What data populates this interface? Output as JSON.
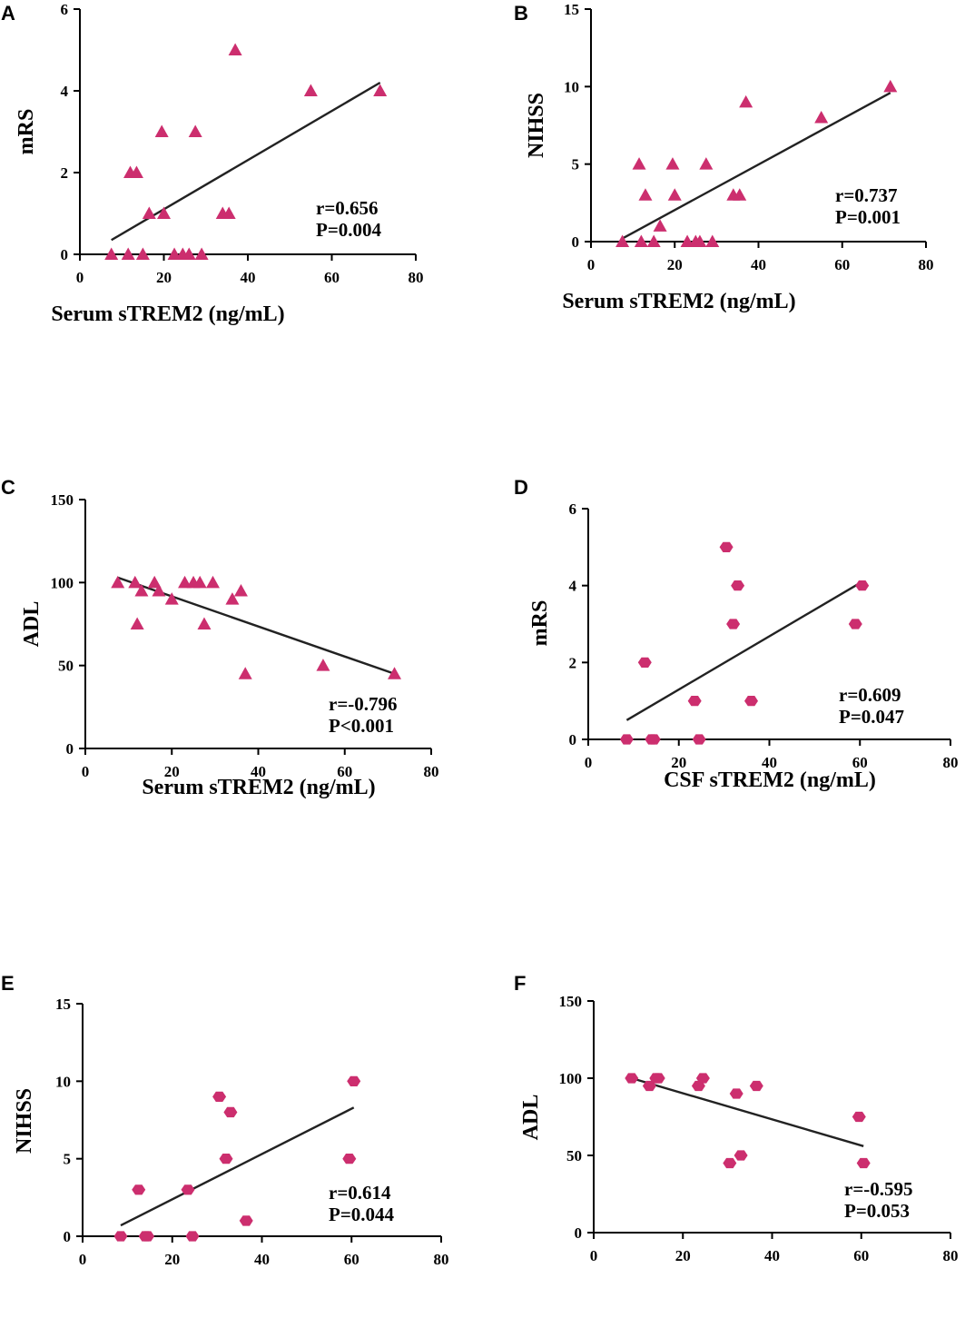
{
  "chart_data": [
    {
      "type": "scatter",
      "panel": "A",
      "marker": "triangle",
      "xlabel": "Serum sTREM2 (ng/mL)",
      "ylabel": "mRS",
      "xlim": [
        0,
        80
      ],
      "ylim": [
        0,
        6
      ],
      "xticks": [
        0,
        20,
        40,
        60,
        80
      ],
      "yticks": [
        0,
        2,
        4,
        6
      ],
      "points": [
        [
          7.5,
          0
        ],
        [
          11.5,
          0
        ],
        [
          12,
          2
        ],
        [
          13.5,
          2
        ],
        [
          15,
          0
        ],
        [
          16.5,
          1
        ],
        [
          19.5,
          3
        ],
        [
          20,
          1
        ],
        [
          22.5,
          0
        ],
        [
          24.5,
          0
        ],
        [
          26,
          0
        ],
        [
          27.5,
          3
        ],
        [
          29,
          0
        ],
        [
          34,
          1
        ],
        [
          35.5,
          1
        ],
        [
          37,
          5
        ],
        [
          55,
          4
        ],
        [
          71.5,
          4
        ]
      ],
      "fit": [
        [
          7.5,
          0.35
        ],
        [
          71.5,
          4.2
        ]
      ],
      "annotation": [
        "r=0.656",
        "P=0.004"
      ]
    },
    {
      "type": "scatter",
      "panel": "B",
      "marker": "triangle",
      "xlabel": "Serum sTREM2 (ng/mL)",
      "ylabel": "NIHSS",
      "xlim": [
        0,
        80
      ],
      "ylim": [
        0,
        15
      ],
      "xticks": [
        0,
        20,
        40,
        60,
        80
      ],
      "yticks": [
        0,
        5,
        10,
        15
      ],
      "points": [
        [
          7.5,
          0
        ],
        [
          11.5,
          5
        ],
        [
          12,
          0
        ],
        [
          13,
          3
        ],
        [
          15,
          0
        ],
        [
          16.5,
          1
        ],
        [
          19.5,
          5
        ],
        [
          20,
          3
        ],
        [
          23,
          0
        ],
        [
          25,
          0
        ],
        [
          26,
          0
        ],
        [
          27.5,
          5
        ],
        [
          29,
          0
        ],
        [
          34,
          3
        ],
        [
          35.5,
          3
        ],
        [
          37,
          9
        ],
        [
          55,
          8
        ],
        [
          71.5,
          10
        ]
      ],
      "fit": [
        [
          7.5,
          0.2
        ],
        [
          71.5,
          9.6
        ]
      ],
      "annotation": [
        "r=0.737",
        "P=0.001"
      ]
    },
    {
      "type": "scatter",
      "panel": "C",
      "marker": "triangle",
      "xlabel": "Serum sTREM2 (ng/mL)",
      "ylabel": "ADL",
      "xlim": [
        0,
        80
      ],
      "ylim": [
        0,
        150
      ],
      "xticks": [
        0,
        20,
        40,
        60,
        80
      ],
      "yticks": [
        0,
        50,
        100,
        150
      ],
      "points": [
        [
          7.5,
          100
        ],
        [
          11.5,
          100
        ],
        [
          12,
          75
        ],
        [
          13,
          95
        ],
        [
          16,
          100
        ],
        [
          17,
          95
        ],
        [
          20,
          90
        ],
        [
          23,
          100
        ],
        [
          25,
          100
        ],
        [
          26.5,
          100
        ],
        [
          27.5,
          75
        ],
        [
          29.5,
          100
        ],
        [
          34,
          90
        ],
        [
          36,
          95
        ],
        [
          37,
          45
        ],
        [
          55,
          50
        ],
        [
          71.5,
          45
        ]
      ],
      "fit": [
        [
          7.5,
          103
        ],
        [
          71.5,
          45
        ]
      ],
      "annotation": [
        "r=-0.796",
        "P<0.001"
      ]
    },
    {
      "type": "scatter",
      "panel": "D",
      "marker": "hexagon",
      "xlabel": "CSF sTREM2 (ng/mL)",
      "ylabel": "mRS",
      "xlim": [
        0,
        80
      ],
      "ylim": [
        0,
        6
      ],
      "xticks": [
        0,
        20,
        40,
        60,
        80
      ],
      "yticks": [
        0,
        2,
        4,
        6
      ],
      "points": [
        [
          8.5,
          0
        ],
        [
          12.5,
          2
        ],
        [
          14,
          0
        ],
        [
          14.5,
          0
        ],
        [
          23.5,
          1
        ],
        [
          24.5,
          0
        ],
        [
          30.5,
          5
        ],
        [
          32,
          3
        ],
        [
          33,
          4
        ],
        [
          36,
          1
        ],
        [
          59,
          3
        ],
        [
          60.5,
          4
        ]
      ],
      "fit": [
        [
          8.5,
          0.5
        ],
        [
          60.5,
          4.1
        ]
      ],
      "annotation": [
        "r=0.609",
        "P=0.047"
      ]
    },
    {
      "type": "scatter",
      "panel": "E",
      "marker": "hexagon",
      "xlabel": "CSF sTREM2 (ng/mL)",
      "ylabel": "NIHSS",
      "xlim": [
        0,
        80
      ],
      "ylim": [
        0,
        15
      ],
      "xticks": [
        0,
        20,
        40,
        60,
        80
      ],
      "yticks": [
        0,
        5,
        10,
        15
      ],
      "points": [
        [
          8.5,
          0
        ],
        [
          12.5,
          3
        ],
        [
          14,
          0
        ],
        [
          14.5,
          0
        ],
        [
          23.5,
          3
        ],
        [
          24.5,
          0
        ],
        [
          30.5,
          9
        ],
        [
          32,
          5
        ],
        [
          33,
          8
        ],
        [
          36.5,
          1
        ],
        [
          59.5,
          5
        ],
        [
          60.5,
          10
        ]
      ],
      "fit": [
        [
          8.5,
          0.7
        ],
        [
          60.5,
          8.3
        ]
      ],
      "annotation": [
        "r=0.614",
        "P=0.044"
      ]
    },
    {
      "type": "scatter",
      "panel": "F",
      "marker": "hexagon",
      "xlabel": "CSF sTREM2 (ng/mL)",
      "ylabel": "ADL",
      "xlim": [
        0,
        80
      ],
      "ylim": [
        0,
        150
      ],
      "xticks": [
        0,
        20,
        40,
        60,
        80
      ],
      "yticks": [
        0,
        50,
        100,
        150
      ],
      "points": [
        [
          8.5,
          100
        ],
        [
          12.5,
          95
        ],
        [
          14,
          100
        ],
        [
          14.5,
          100
        ],
        [
          23.5,
          95
        ],
        [
          24.5,
          100
        ],
        [
          30.5,
          45
        ],
        [
          32,
          90
        ],
        [
          33,
          50
        ],
        [
          36.5,
          95
        ],
        [
          59.5,
          75
        ],
        [
          60.5,
          45
        ]
      ],
      "fit": [
        [
          8.5,
          100
        ],
        [
          60.5,
          56
        ]
      ],
      "annotation": [
        "r=-0.595",
        "P=0.053"
      ]
    }
  ]
}
